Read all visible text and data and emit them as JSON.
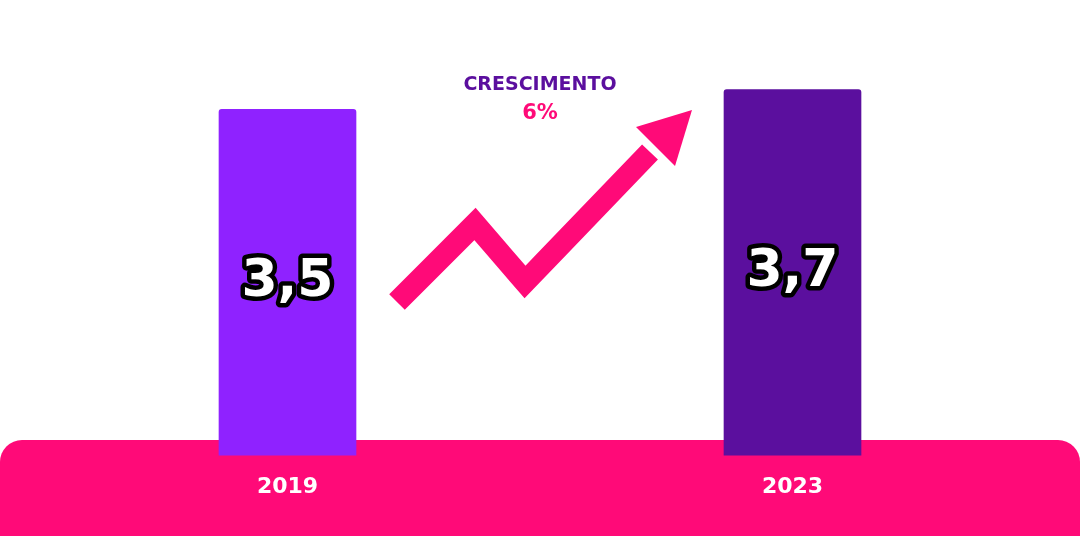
{
  "chart_data": {
    "type": "bar",
    "categories": [
      "2019",
      "2023"
    ],
    "values": [
      3.5,
      3.7
    ],
    "colors": [
      "#8f22ff",
      "#5b0f9e"
    ],
    "value_labels": [
      "3,5",
      "3,7"
    ],
    "tick_labels": "x",
    "grid": false,
    "legend": false,
    "annotations": [
      "CRESCIMENTO",
      "6%"
    ]
  }
}
